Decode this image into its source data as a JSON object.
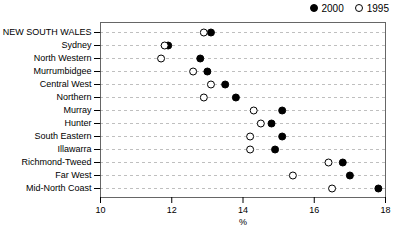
{
  "chart_data": {
    "type": "dot",
    "categories": [
      "NEW SOUTH WALES",
      "Sydney",
      "North Western",
      "Murrumbidgee",
      "Central West",
      "Northern",
      "Murray",
      "Hunter",
      "South Eastern",
      "Illawarra",
      "Richmond-Tweed",
      "Far West",
      "Mid-North Coast"
    ],
    "series": [
      {
        "name": "2000",
        "color": "#000000",
        "marker": "filled",
        "values": [
          13.1,
          11.9,
          12.8,
          13.0,
          13.5,
          13.8,
          15.1,
          14.8,
          15.1,
          14.9,
          16.8,
          17.0,
          17.8
        ]
      },
      {
        "name": "1995",
        "color": "#000000",
        "marker": "open",
        "values": [
          12.9,
          11.8,
          11.7,
          12.6,
          13.1,
          12.9,
          14.3,
          14.5,
          14.2,
          14.2,
          16.4,
          15.4,
          16.5
        ]
      }
    ],
    "xlabel": "%",
    "xlim": [
      10,
      18
    ],
    "xticks": [
      10,
      12,
      14,
      16,
      18
    ],
    "grid": true,
    "legend": "right"
  }
}
